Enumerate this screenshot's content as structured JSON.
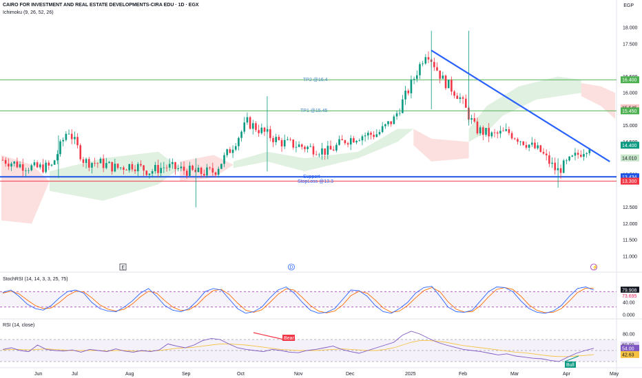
{
  "header": {
    "title": "CAIRO FOR INVESTMENT AND REAL ESTATE DEVELOPMENTS-CIRA EDU · 1D · EGX",
    "indicator": "Ichimoku (9, 26, 52, 26)",
    "currency": "EGP"
  },
  "colors": {
    "up": "#089981",
    "down": "#f23645",
    "trendline": "#2962ff",
    "tp": "#4caf50",
    "stoploss": "#f23645",
    "support": "#1e53e5",
    "cloud_green": "#c8e6c9",
    "cloud_red": "#f8c7c4",
    "stoch_k": "#2962ff",
    "stoch_d": "#ff6d00",
    "rsi": "#7e57c2",
    "rsi_ma": "#f5c242"
  },
  "chart_data": [
    {
      "type": "candlestick",
      "title": "CAIRO FOR INVESTMENT AND REAL ESTATE DEVELOPMENTS-CIRA EDU · 1D · EGX",
      "x_ticks": [
        "Jun",
        "Jul",
        "Aug",
        "Sep",
        "Oct",
        "Nov",
        "Dec",
        "2025",
        "Feb",
        "Mar",
        "Apr",
        "May"
      ],
      "y_ticks": [
        "18.000",
        "17.500",
        "16.500",
        "16.000",
        "15.000",
        "14.500",
        "13.500",
        "12.500",
        "12.000",
        "11.500",
        "11.000"
      ],
      "ylim": [
        10.8,
        18.1
      ],
      "series": [
        {
          "name": "Price (close, approx.)",
          "points": [
            [
              "May 24",
              13.95
            ],
            [
              "Jun 1",
              13.8
            ],
            [
              "Jun 10",
              13.7
            ],
            [
              "Jun 20",
              13.75
            ],
            [
              "Jun 25",
              14.9
            ],
            [
              "Jul 1",
              13.9
            ],
            [
              "Jul 10",
              13.85
            ],
            [
              "Jul 20",
              13.7
            ],
            [
              "Aug 1",
              13.8
            ],
            [
              "Aug 10",
              13.6
            ],
            [
              "Aug 20",
              13.75
            ],
            [
              "Sep 1",
              13.65
            ],
            [
              "Sep 10",
              13.55
            ],
            [
              "Sep 20",
              13.6
            ],
            [
              "Oct 1",
              14.3
            ],
            [
              "Oct 10",
              15.1
            ],
            [
              "Oct 20",
              14.8
            ],
            [
              "Nov 1",
              14.5
            ],
            [
              "Nov 10",
              14.4
            ],
            [
              "Nov 20",
              14.3
            ],
            [
              "Dec 1",
              14.2
            ],
            [
              "Dec 10",
              14.55
            ],
            [
              "Dec 20",
              14.7
            ],
            [
              "Jan 1",
              14.75
            ],
            [
              "Jan 10",
              15.2
            ],
            [
              "Jan 15",
              16.2
            ],
            [
              "Jan 20",
              17.3
            ],
            [
              "Jan 25",
              16.4
            ],
            [
              "Feb 1",
              15.9
            ],
            [
              "Feb 10",
              14.9
            ],
            [
              "Feb 20",
              14.7
            ],
            [
              "Mar 1",
              14.8
            ],
            [
              "Mar 10",
              14.5
            ],
            [
              "Mar 20",
              14.2
            ],
            [
              "Apr 1",
              13.6
            ],
            [
              "Apr 8",
              14.0
            ],
            [
              "Apr 14",
              14.4
            ]
          ]
        }
      ],
      "lines": [
        {
          "label": "TP2 @16.4",
          "value": 16.4
        },
        {
          "label": "TP1 @15.45",
          "value": 15.45
        },
        {
          "label": "Support",
          "value": 13.434
        },
        {
          "label": "StopLoss @13.3",
          "value": 13.3
        }
      ],
      "trendline": {
        "from": [
          "Jan 20",
          17.3
        ],
        "to": [
          "Apr 30",
          13.9
        ]
      },
      "ichimoku_cloud": {
        "green_regions": [
          "Jun–Aug",
          "Oct–Dec",
          "Feb–Apr"
        ],
        "red_regions": [
          "May–Jun",
          "Sep",
          "Jan",
          "Apr–May"
        ]
      },
      "price_badges": [
        {
          "value": "16.400",
          "color": "#4caf50"
        },
        {
          "value": "15.545",
          "color": "#f8c7c4",
          "text_color": "#131722"
        },
        {
          "value": "15.450",
          "color": "#4caf50"
        },
        {
          "value": "14.400",
          "color": "#089981"
        },
        {
          "value": "14.010",
          "color": "#c8e6c9",
          "text_color": "#131722"
        },
        {
          "value": "13.434",
          "color": "#1e53e5"
        },
        {
          "value": "13.300",
          "color": "#f23645"
        }
      ],
      "event_markers": [
        "E",
        "D"
      ]
    },
    {
      "type": "line",
      "title": "StochRSI (14, 14, 3, 3, 25, 75)",
      "y_ticks": [
        "80.00",
        "40.00",
        "0.000"
      ],
      "ylim": [
        0,
        100
      ],
      "levels": [
        75,
        25
      ],
      "series": [
        {
          "name": "K",
          "last": 79.908,
          "values": [
            72,
            80,
            60,
            35,
            20,
            15,
            30,
            55,
            75,
            80,
            70,
            40,
            20,
            12,
            10,
            25,
            45,
            70,
            85,
            60,
            30,
            15,
            10,
            20,
            45,
            75,
            85,
            80,
            50,
            20,
            5,
            10,
            25,
            55,
            80,
            90,
            70,
            40,
            15,
            5,
            8,
            20,
            50,
            80,
            78,
            60,
            30,
            10,
            5,
            20,
            40,
            70,
            88,
            92,
            60,
            25,
            10,
            8,
            15,
            45,
            75,
            90,
            88,
            75,
            45,
            20,
            8,
            5,
            12,
            30,
            60,
            85,
            90,
            80
          ]
        },
        {
          "name": "D",
          "last": 73.695,
          "values": [
            70,
            76,
            68,
            48,
            30,
            20,
            22,
            40,
            62,
            76,
            74,
            55,
            32,
            18,
            12,
            18,
            35,
            58,
            76,
            70,
            46,
            25,
            14,
            16,
            32,
            58,
            78,
            82,
            65,
            38,
            15,
            8,
            16,
            40,
            66,
            84,
            80,
            56,
            30,
            12,
            6,
            12,
            32,
            62,
            76,
            70,
            48,
            22,
            8,
            12,
            30,
            55,
            78,
            88,
            75,
            42,
            18,
            9,
            10,
            30,
            58,
            82,
            88,
            82,
            60,
            32,
            14,
            7,
            8,
            20,
            45,
            72,
            86,
            86
          ]
        }
      ]
    },
    {
      "type": "line",
      "title": "RSI (14, close)",
      "y_ticks": [
        "80.00",
        "60.00"
      ],
      "ylim": [
        25,
        90
      ],
      "levels": [
        70,
        50,
        30
      ],
      "annotations": [
        {
          "label": "Bear",
          "color": "#f23645"
        },
        {
          "label": "Bull",
          "color": "#089981"
        }
      ],
      "series": [
        {
          "name": "RSI",
          "last": 54.0,
          "values": [
            52,
            55,
            50,
            48,
            60,
            52,
            50,
            49,
            51,
            47,
            52,
            50,
            48,
            53,
            49,
            47,
            50,
            48,
            51,
            62,
            58,
            55,
            60,
            68,
            72,
            70,
            62,
            55,
            52,
            50,
            48,
            52,
            50,
            47,
            46,
            50,
            52,
            55,
            58,
            52,
            48,
            45,
            50,
            55,
            60,
            65,
            78,
            85,
            80,
            72,
            65,
            60,
            56,
            52,
            50,
            48,
            45,
            42,
            44,
            40,
            38,
            36,
            35,
            32,
            30,
            38,
            45,
            50,
            54
          ]
        },
        {
          "name": "RSI MA",
          "last": 42.63,
          "values": [
            51,
            52,
            52,
            51,
            52,
            53,
            52,
            51,
            50,
            50,
            50,
            50,
            49,
            50,
            50,
            49,
            49,
            49,
            50,
            52,
            54,
            55,
            56,
            58,
            60,
            62,
            62,
            61,
            60,
            58,
            56,
            54,
            52,
            51,
            50,
            50,
            50,
            51,
            52,
            53,
            52,
            51,
            50,
            50,
            52,
            55,
            60,
            65,
            68,
            68,
            67,
            65,
            62,
            59,
            57,
            55,
            53,
            51,
            49,
            47,
            46,
            44,
            42,
            40,
            39,
            39,
            40,
            41,
            42.63
          ]
        }
      ],
      "badges": [
        {
          "value": "60.00",
          "color": "#e1d5f5",
          "text_color": "#131722"
        },
        {
          "value": "54.00",
          "color": "#7e57c2"
        },
        {
          "value": "42.63",
          "color": "#f5c242",
          "text_color": "#131722"
        }
      ]
    }
  ],
  "badge_labels": {
    "b1": "16.400",
    "b2": "15.545",
    "b3": "15.450",
    "b4": "14.400",
    "b5": "14.010",
    "b6": "13.434",
    "b7": "13.300",
    "s1": "79.908",
    "s2": "73.695",
    "r1": "60.00",
    "r2": "54.00",
    "r3": "42.63"
  },
  "markers": {
    "e": "E",
    "d": "D",
    "bear": "Bear",
    "bull": "Bull"
  }
}
